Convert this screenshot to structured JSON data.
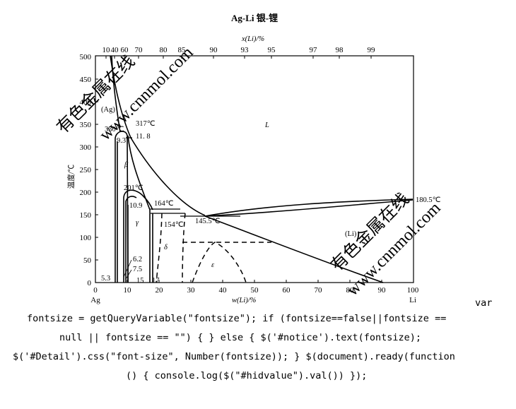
{
  "diagram": {
    "title": "Ag-Li  银-锂",
    "top_axis": {
      "label": "x(Li)/%",
      "ticks": [
        "10",
        "40",
        "60",
        "70",
        "80",
        "85",
        "90",
        "93",
        "95",
        "97",
        "98",
        "99"
      ]
    },
    "bottom_axis": {
      "label": "w(Li)/%",
      "ticks": [
        "0",
        "10",
        "20",
        "30",
        "40",
        "50",
        "60",
        "70",
        "80",
        "90",
        "100"
      ],
      "left_end": "Ag",
      "right_end": "Li",
      "range": [
        0,
        100
      ]
    },
    "left_axis": {
      "label": "温度/℃",
      "ticks": [
        "0",
        "50",
        "100",
        "150",
        "200",
        "250",
        "300",
        "350",
        "400",
        "450",
        "500"
      ],
      "range": [
        0,
        500
      ]
    },
    "annotations": {
      "ag_phase": "(Ag)",
      "li_phase": "(Li)",
      "liquid": "L",
      "beta": "β",
      "gamma": "γ",
      "delta": "δ",
      "epsilon": "ε",
      "t317": "317℃",
      "t330": "330℃",
      "v11_8": "11. 8",
      "v9_3": "9.3",
      "t201": "201℃",
      "v10_9": "10.9",
      "t164": "164℃",
      "t154": "154℃",
      "t145_5": "145.5℃",
      "t180_5": "180.5℃",
      "v6_2": "6.2",
      "v7_5": "7.5",
      "v5_3": "5.3",
      "v15": "15",
      "v17": "17"
    },
    "watermarks": [
      "有色金属在线",
      "www.cnnmol.com",
      "有色金属在线",
      "www.cnnmol.com"
    ]
  },
  "code": {
    "lines": [
      "var",
      "fontsize = getQueryVariable(\"fontsize\"); if (fontsize==false||fontsize ==",
      "null || fontsize == \"\") { } else { $('#notice').text(fontsize);",
      "$('#Detail').css(\"font-size\", Number(fontsize)); } $(document).ready(function",
      "() { console.log($(\"#hidvalue\").val()) });"
    ]
  }
}
